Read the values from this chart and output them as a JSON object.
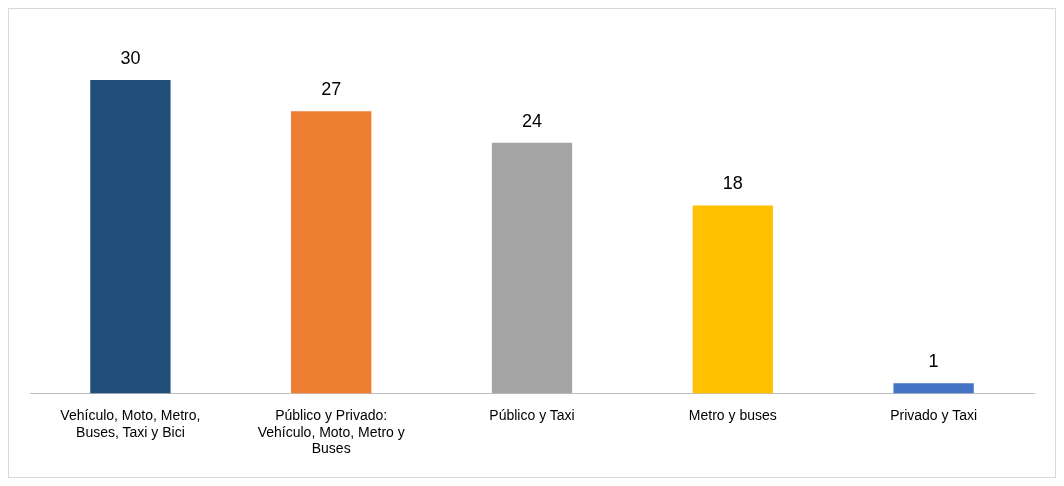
{
  "chart_data": {
    "type": "bar",
    "categories": [
      "Vehículo, Moto, Metro, Buses, Taxi y Bici",
      "Público y Privado: Vehículo, Moto, Metro y Buses",
      "Público y Taxi",
      "Metro y buses",
      "Privado y Taxi"
    ],
    "values": [
      30,
      27,
      24,
      18,
      1
    ],
    "colors": [
      "#1f4e79",
      "#ed7d31",
      "#a5a5a5",
      "#ffc000",
      "#4472c4"
    ],
    "tick_labels": "x",
    "data_labels": true
  }
}
